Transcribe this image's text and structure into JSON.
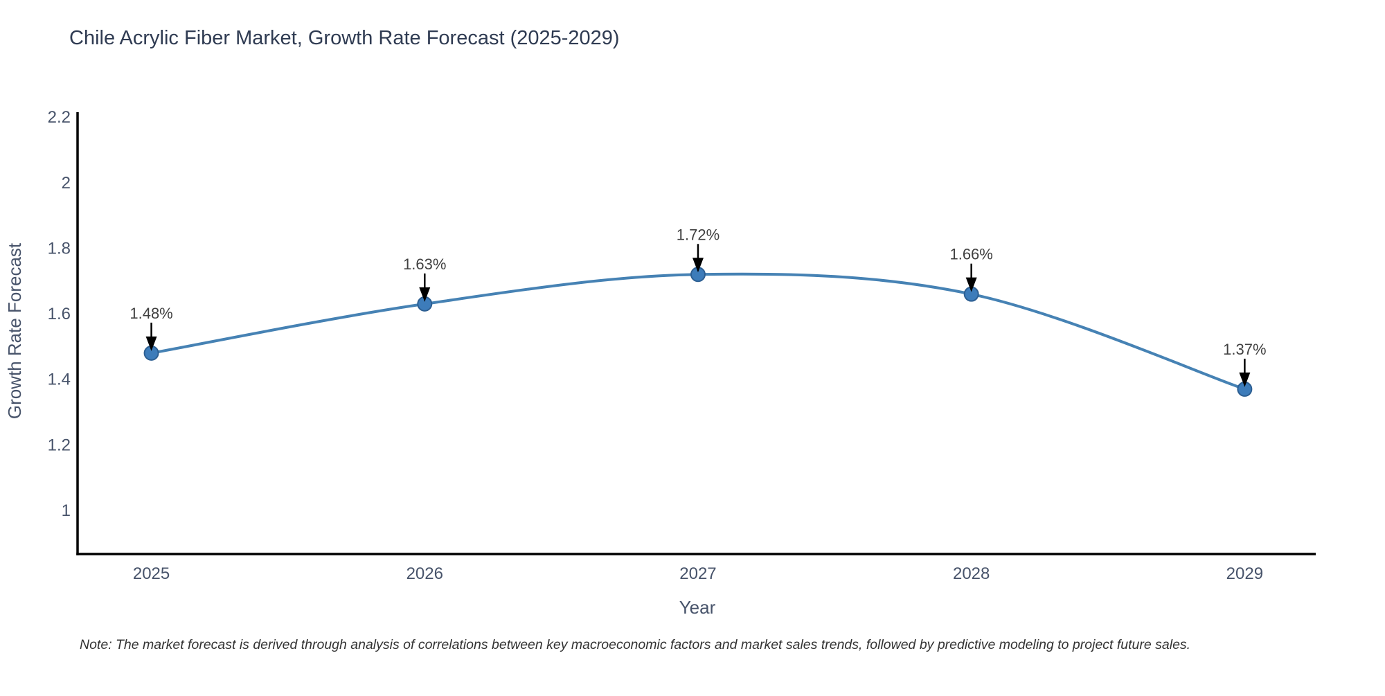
{
  "title": "Chile Acrylic Fiber Market, Growth Rate Forecast (2025-2029)",
  "note": "Note: The market forecast is derived through analysis of correlations between key macroeconomic factors and market sales trends, followed by predictive modeling to project future sales.",
  "chart_data": {
    "type": "line",
    "title": "Chile Acrylic Fiber Market, Growth Rate Forecast (2025-2029)",
    "xlabel": "Year",
    "ylabel": "Growth Rate Forecast",
    "x": [
      2025,
      2026,
      2027,
      2028,
      2029
    ],
    "values": [
      1.48,
      1.63,
      1.72,
      1.66,
      1.37
    ],
    "point_labels": [
      "1.48%",
      "1.63%",
      "1.72%",
      "1.66%",
      "1.37%"
    ],
    "xtick_labels": [
      "2025",
      "2026",
      "2027",
      "2028",
      "2029"
    ],
    "ytick_values": [
      1,
      1.2,
      1.4,
      1.6,
      1.8,
      2,
      2.2
    ],
    "ytick_labels": [
      "1",
      "1.2",
      "1.4",
      "1.6",
      "1.8",
      "2",
      "2.2"
    ],
    "xlim": [
      2024.73,
      2029.26
    ],
    "ylim": [
      0.867,
      2.215
    ],
    "grid": false,
    "legend": "none",
    "smooth": true,
    "colors": {
      "line": "#4682b4",
      "marker_fill": "#3d7cba",
      "marker_edge": "#2d5f92",
      "axis": "#000000",
      "title_text": "#2f3b52",
      "axis_label_text": "#47536a",
      "tick_text": "#47536a",
      "annotation_text": "#404040",
      "annotation_arrow": "#000000",
      "note_text": "#333333"
    }
  }
}
